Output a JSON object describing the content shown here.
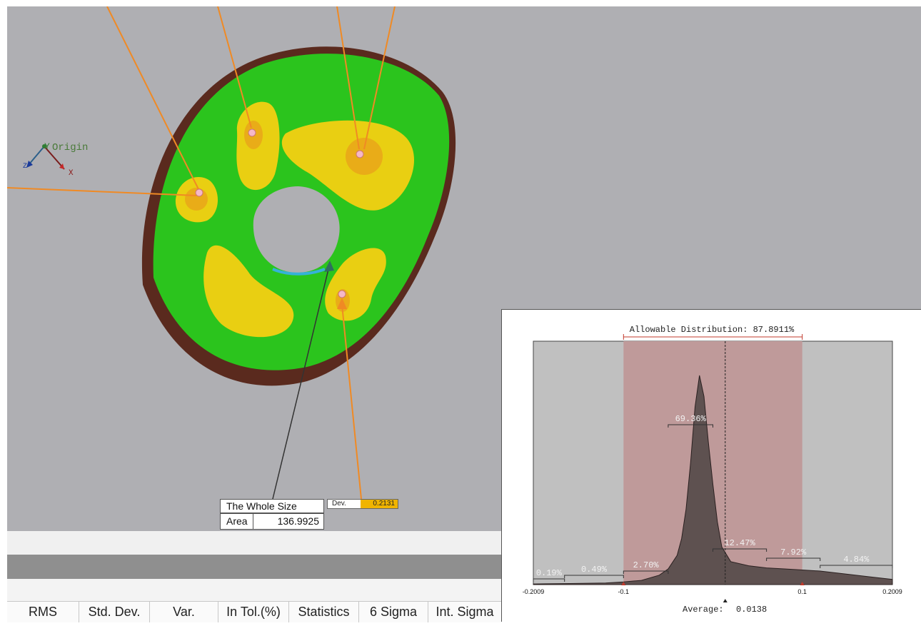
{
  "viewport": {
    "axis_origin_label": "Origin",
    "axis_y_label": "Y",
    "axis_x_label": "X",
    "axis_z_label": "Z"
  },
  "callout": {
    "title": "The Whole Size",
    "area_label": "Area",
    "area_value": "136.9925",
    "dev_label": "Dev.",
    "dev_value": "0.2131"
  },
  "stats_table": {
    "columns": [
      "RMS",
      "Std. Dev.",
      "Var.",
      "In Tol.(%)",
      "Statistics",
      "6 Sigma",
      "Int. Sigma"
    ]
  },
  "histogram": {
    "title": "Allowable Distribution: 87.8911%",
    "average_label": "Average:",
    "average_value": "0.0138",
    "colors": {
      "in_tolerance": "#bf9a9a",
      "out_of_tolerance": "#c0c0c0",
      "distribution": "#5e5150",
      "tolerance_marker": "#c0392b"
    }
  },
  "chart_data": {
    "type": "area",
    "title": "Allowable Distribution: 87.8911%",
    "xlabel": "",
    "ylabel": "",
    "x_ticks": [
      "-0.2009",
      "-0.1",
      "0.1",
      "0.2009"
    ],
    "xlim": [
      -0.2009,
      0.2009
    ],
    "tolerance_range": [
      -0.1,
      0.1
    ],
    "average": 0.0138,
    "bin_percentages": [
      {
        "label": "0.19%",
        "range": [
          -0.2009,
          -0.166
        ]
      },
      {
        "label": "0.49%",
        "range": [
          -0.166,
          -0.1
        ]
      },
      {
        "label": "2.70%",
        "range": [
          -0.1,
          -0.05
        ]
      },
      {
        "label": "69.36%",
        "range": [
          -0.05,
          0.0
        ]
      },
      {
        "label": "12.47%",
        "range": [
          0.0,
          0.06
        ]
      },
      {
        "label": "7.92%",
        "range": [
          0.06,
          0.12
        ]
      },
      {
        "label": "4.84%",
        "range": [
          0.12,
          0.2009
        ]
      }
    ],
    "distribution": {
      "x": [
        -0.2009,
        -0.16,
        -0.12,
        -0.1,
        -0.08,
        -0.06,
        -0.05,
        -0.04,
        -0.035,
        -0.03,
        -0.025,
        -0.02,
        -0.015,
        -0.01,
        -0.005,
        0.0,
        0.005,
        0.01,
        0.02,
        0.04,
        0.06,
        0.08,
        0.1,
        0.12,
        0.15,
        0.18,
        0.2009
      ],
      "y": [
        0.3,
        0.5,
        0.8,
        1.3,
        2.0,
        4.5,
        7.5,
        14,
        22,
        36,
        58,
        85,
        100,
        90,
        68,
        48,
        30,
        18,
        11,
        9,
        8,
        7.5,
        7,
        6.5,
        5,
        3.5,
        2.5
      ]
    }
  }
}
